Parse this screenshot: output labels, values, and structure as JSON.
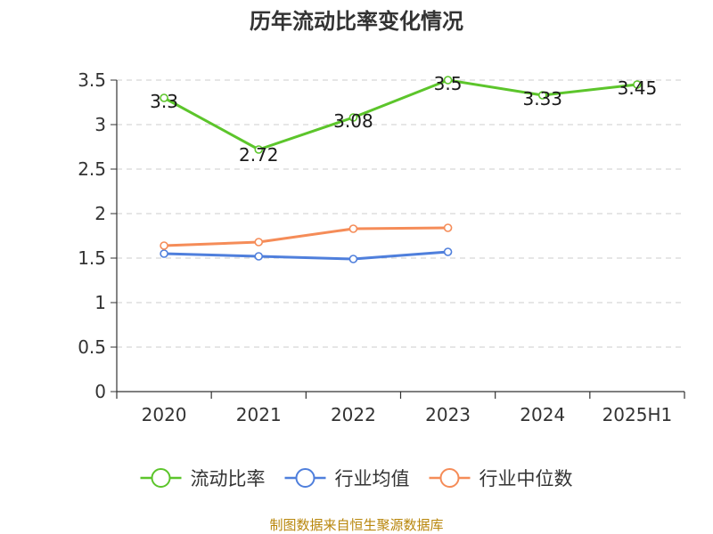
{
  "chart_data": {
    "type": "line",
    "title": "历年流动比率变化情况",
    "categories": [
      "2020",
      "2021",
      "2022",
      "2023",
      "2024",
      "2025H1"
    ],
    "yticks": [
      "0",
      "0.5",
      "1",
      "1.5",
      "2",
      "2.5",
      "3",
      "3.5"
    ],
    "ylim": [
      0,
      3.5
    ],
    "grid": true,
    "legend_position": "bottom",
    "series": [
      {
        "name": "流动比率",
        "color": "#5cc52b",
        "values": [
          3.3,
          2.72,
          3.08,
          3.5,
          3.33,
          3.45
        ],
        "labels": [
          "3.3",
          "2.72",
          "3.08",
          "3.5",
          "3.33",
          "3.45"
        ]
      },
      {
        "name": "行业均值",
        "color": "#4f7fdc",
        "values": [
          1.55,
          1.52,
          1.49,
          1.57,
          null,
          null
        ]
      },
      {
        "name": "行业中位数",
        "color": "#f58c58",
        "values": [
          1.64,
          1.68,
          1.83,
          1.84,
          null,
          null
        ]
      }
    ]
  },
  "source_text": "制图数据来自恒生聚源数据库"
}
